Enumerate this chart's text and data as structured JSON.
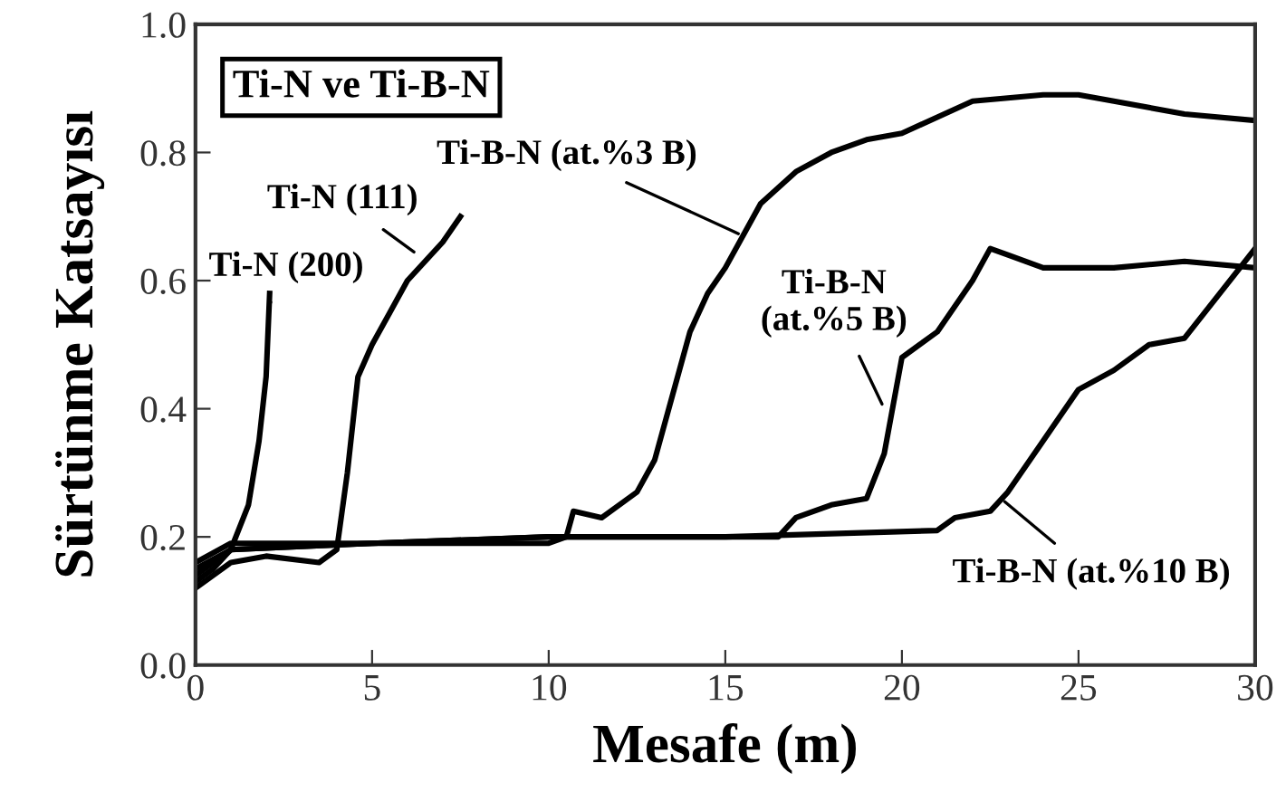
{
  "chart_data": {
    "type": "line",
    "xlabel": "Mesafe (m)",
    "ylabel": "Sürtünme Katsayısı",
    "xlim": [
      0,
      30
    ],
    "ylim": [
      0.0,
      1.0
    ],
    "xticks": [
      0,
      5,
      10,
      15,
      20,
      25,
      30
    ],
    "yticks": [
      {
        "value": 0.0,
        "label": "0.0"
      },
      0.2,
      0.4,
      0.6,
      0.8,
      {
        "value": 1.0,
        "label": "1.0"
      }
    ],
    "grid": false,
    "legend": false,
    "marker": "none",
    "line_style": "solid",
    "series": [
      {
        "color": "#000000",
        "x": [
          0,
          0.5,
          1,
          1.5,
          1.8,
          2.0,
          2.1
        ],
        "values": [
          0.13,
          0.15,
          0.18,
          0.25,
          0.35,
          0.45,
          0.58
        ]
      },
      {
        "color": "#000000",
        "x": [
          0,
          1,
          2,
          3.5,
          4,
          4.3,
          4.6,
          5,
          5.5,
          6,
          6.5,
          7,
          7.5
        ],
        "values": [
          0.12,
          0.16,
          0.17,
          0.16,
          0.18,
          0.3,
          0.45,
          0.5,
          0.55,
          0.6,
          0.63,
          0.66,
          0.7
        ]
      },
      {
        "color": "#000000",
        "x": [
          0,
          1,
          5,
          10,
          10.5,
          10.7,
          11.5,
          12.5,
          13,
          13.5,
          14,
          14.5,
          15,
          16,
          17,
          18,
          19,
          20,
          22,
          24,
          25,
          26,
          28,
          30
        ],
        "values": [
          0.14,
          0.18,
          0.19,
          0.19,
          0.2,
          0.24,
          0.23,
          0.27,
          0.32,
          0.42,
          0.52,
          0.58,
          0.62,
          0.72,
          0.77,
          0.8,
          0.82,
          0.83,
          0.88,
          0.89,
          0.89,
          0.88,
          0.86,
          0.85
        ]
      },
      {
        "color": "#000000",
        "x": [
          0,
          1,
          5,
          10,
          16.5,
          17,
          18,
          19,
          19.5,
          20,
          20.5,
          21,
          22,
          22.5,
          23,
          24,
          26,
          28,
          30
        ],
        "values": [
          0.15,
          0.18,
          0.19,
          0.2,
          0.2,
          0.23,
          0.25,
          0.26,
          0.33,
          0.48,
          0.5,
          0.52,
          0.6,
          0.65,
          0.64,
          0.62,
          0.62,
          0.63,
          0.62
        ]
      },
      {
        "color": "#000000",
        "x": [
          0,
          1,
          5,
          10,
          15,
          21,
          21.5,
          22.5,
          23,
          24,
          25,
          26,
          27,
          28,
          29,
          30
        ],
        "values": [
          0.16,
          0.19,
          0.19,
          0.2,
          0.2,
          0.21,
          0.23,
          0.24,
          0.27,
          0.35,
          0.43,
          0.46,
          0.5,
          0.51,
          0.58,
          0.65
        ]
      }
    ],
    "annotations": [
      "Ti-N ve Ti-B-N",
      {
        "text": "Ti-N (200)",
        "x": 2.0,
        "y": 0.55
      },
      {
        "text": "Ti-N (111)",
        "x": 6.3,
        "y": 0.64
      },
      {
        "text": "Ti-B-N (at.%3 B)",
        "x": 15.5,
        "y": 0.67
      },
      {
        "text": "Ti-B-N\n(at.%5 B)",
        "x": 19.5,
        "y": 0.4
      },
      {
        "text": "Ti-B-N (at.%10 B)",
        "x": 22.8,
        "y": 0.26
      }
    ]
  }
}
